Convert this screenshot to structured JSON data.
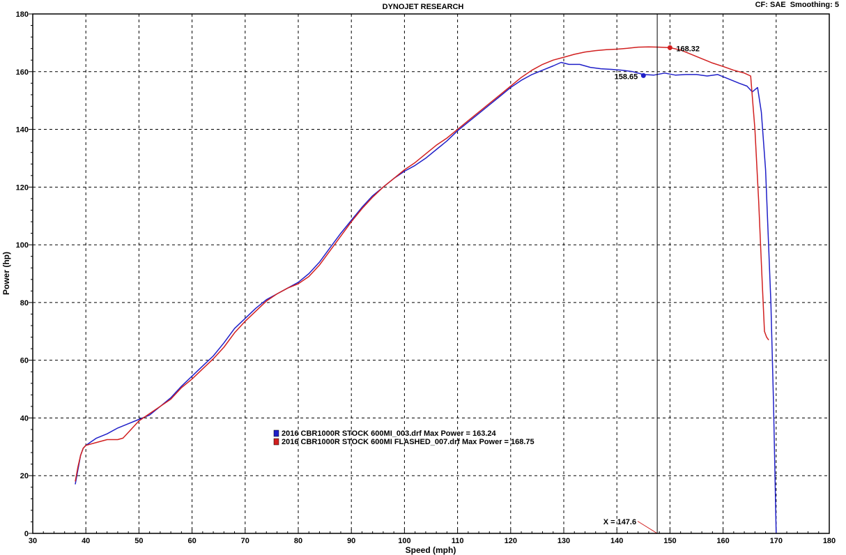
{
  "chart_data": {
    "type": "line",
    "title": "DYNOJET RESEARCH",
    "top_right": "CF: SAE  Smoothing: 5",
    "xlabel": "Speed (mph)",
    "ylabel": "Power (hp)",
    "xlim": [
      30,
      180
    ],
    "ylim": [
      0,
      180
    ],
    "x_ticks": [
      30,
      40,
      50,
      60,
      70,
      80,
      90,
      100,
      110,
      120,
      130,
      140,
      150,
      160,
      170,
      180
    ],
    "y_ticks": [
      0,
      20,
      40,
      60,
      80,
      100,
      120,
      140,
      160,
      180
    ],
    "grid": true,
    "legend_position": "lower-center",
    "cursor": {
      "x": 147.6,
      "label": "X = 147.6"
    },
    "series": [
      {
        "name": "2016 CBR1000R STOCK 600MI_003.drf Max Power = 163.24",
        "color": "#1f1fc8",
        "x": [
          38,
          38.5,
          39,
          39.5,
          40,
          42,
          44,
          46,
          48,
          50,
          52,
          54,
          56,
          58,
          60,
          62,
          64,
          66,
          68,
          70,
          72,
          74,
          76,
          78,
          80,
          82,
          84,
          86,
          88,
          90,
          92,
          94,
          96,
          98,
          100,
          102,
          104,
          106,
          108,
          110,
          112,
          114,
          116,
          118,
          120,
          122,
          124,
          126,
          128,
          129.5,
          131,
          133,
          135,
          137,
          139,
          141,
          143,
          145,
          147,
          149,
          151,
          153,
          155,
          157,
          159,
          161,
          163,
          164.5,
          165.5,
          166.5,
          167.2,
          168,
          169,
          169.5,
          170
        ],
        "values": [
          17,
          22,
          27,
          29.5,
          30.5,
          33,
          34.5,
          36.5,
          38,
          39.5,
          41,
          44,
          47,
          51,
          54.5,
          58,
          61.5,
          66,
          71,
          74.5,
          78,
          81,
          83,
          85,
          87,
          90,
          94,
          99,
          104,
          108.5,
          113,
          117,
          120,
          123,
          125.5,
          127.5,
          130,
          133,
          136,
          139.5,
          142.5,
          145.5,
          148.5,
          151.5,
          154.5,
          157,
          159,
          160.5,
          162,
          163.2,
          162.5,
          162.5,
          161.5,
          161,
          160.8,
          160.5,
          160,
          159,
          158.8,
          159.5,
          158.8,
          159,
          159,
          158.5,
          159,
          157.5,
          156,
          155,
          153,
          154.5,
          146,
          126,
          80,
          45,
          0
        ]
      },
      {
        "name": "2016 CBR1000R STOCK 600MI FLASHED_007.drf Max Power = 168.75",
        "color": "#d11f1f",
        "x": [
          38,
          38.5,
          39,
          39.5,
          40,
          42,
          44,
          46,
          47,
          48,
          50,
          52,
          54,
          56,
          58,
          60,
          62,
          64,
          66,
          68,
          70,
          72,
          74,
          76,
          78,
          80,
          82,
          84,
          86,
          88,
          90,
          92,
          94,
          96,
          98,
          100,
          102,
          104,
          106,
          108,
          110,
          112,
          114,
          116,
          118,
          120,
          122,
          124,
          126,
          128,
          130,
          132,
          134,
          136,
          138,
          140,
          142,
          144,
          146,
          148,
          150,
          152,
          154,
          156,
          158,
          160,
          162,
          164,
          165.2,
          166,
          166.7,
          167.3,
          167.8,
          168.2,
          168.6
        ],
        "values": [
          18,
          23,
          27,
          29.5,
          30.5,
          31.5,
          32.5,
          32.5,
          33,
          35,
          39,
          41.5,
          44,
          46.5,
          50.5,
          53.5,
          57,
          60.5,
          64.5,
          69.5,
          73.5,
          77,
          80.5,
          83,
          85,
          86.5,
          89,
          93,
          98,
          103,
          108,
          112.5,
          116.5,
          120,
          123,
          126,
          128.5,
          131.5,
          134.5,
          137,
          140,
          143,
          146,
          149,
          152,
          155,
          158,
          160.5,
          162.5,
          164,
          165,
          166,
          166.8,
          167.3,
          167.6,
          167.8,
          168.1,
          168.5,
          168.6,
          168.5,
          168.3,
          167.5,
          166,
          164.5,
          163,
          161.8,
          160.5,
          159.5,
          158.5,
          140,
          115,
          90,
          70,
          68,
          67
        ]
      }
    ],
    "annotations": [
      {
        "text": "168.32",
        "x": 150,
        "y": 168.32,
        "color": "#d11f1f"
      },
      {
        "text": "158.65",
        "x": 145,
        "y": 158.65,
        "color": "#1f1fc8"
      }
    ]
  }
}
